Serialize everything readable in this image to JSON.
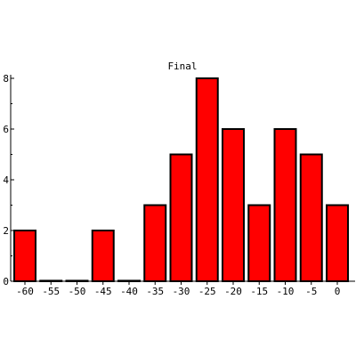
{
  "chart_data": {
    "type": "bar",
    "title": "Final",
    "xlabel": "",
    "ylabel": "",
    "categories": [
      "-60",
      "-55",
      "-50",
      "-45",
      "-40",
      "-35",
      "-30",
      "-25",
      "-20",
      "-15",
      "-10",
      "-5",
      "0"
    ],
    "values": [
      2,
      0,
      0,
      2,
      0,
      3,
      5,
      8,
      6,
      3,
      6,
      5,
      3
    ],
    "ylim": [
      0,
      8
    ],
    "yticks": [
      "0",
      "2",
      "4",
      "6",
      "8"
    ],
    "grid": false,
    "legend": "none",
    "bar_color": "#ff0000",
    "edge_color": "#000000"
  }
}
